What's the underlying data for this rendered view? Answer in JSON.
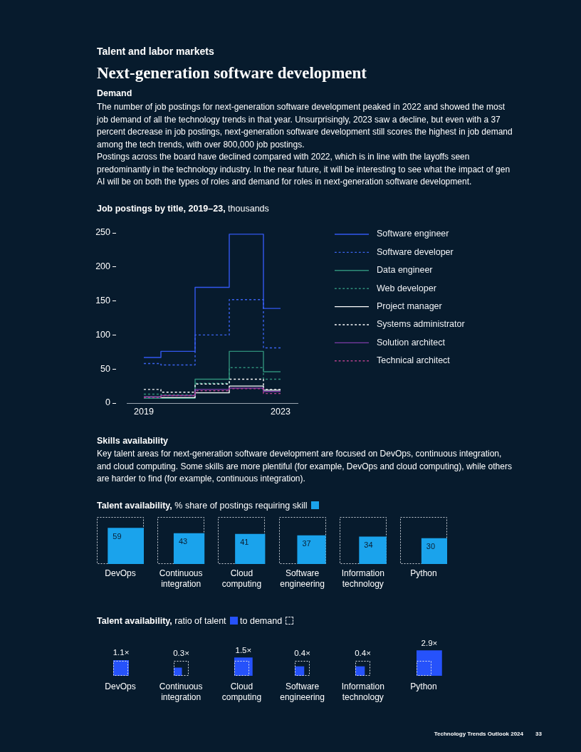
{
  "chart_data": [
    {
      "type": "step",
      "title": "Job postings by title, 2019–23, thousands",
      "x": [
        2019,
        2020,
        2021,
        2022,
        2023
      ],
      "xlim": [
        2018.5,
        2023.5
      ],
      "xticks": [
        2019,
        2023
      ],
      "ylim": [
        0,
        250
      ],
      "yticks": [
        0,
        50,
        100,
        150,
        200,
        250
      ],
      "grid": false,
      "legend": "right",
      "series": [
        {
          "name": "Software engineer",
          "color": "#3358f0",
          "values": [
            67,
            76,
            170,
            248,
            139
          ]
        },
        {
          "name": "Software developer",
          "color": "#3a63f0",
          "line_style": "dashed",
          "values": [
            58,
            56,
            100,
            152,
            81
          ]
        },
        {
          "name": "Data engineer",
          "color": "#2f8f7a",
          "values": [
            7,
            7,
            35,
            76,
            46
          ]
        },
        {
          "name": "Web developer",
          "color": "#2f8f7a",
          "line_style": "dashed",
          "values": [
            13,
            12,
            29,
            52,
            35
          ]
        },
        {
          "name": "Project manager",
          "color": "#ffffff",
          "values": [
            9,
            8,
            15,
            25,
            19
          ]
        },
        {
          "name": "Systems administrator",
          "color": "#ffffff",
          "line_style": "dashed",
          "values": [
            20,
            16,
            28,
            35,
            20
          ]
        },
        {
          "name": "Solution architect",
          "color": "#7d3ca8",
          "values": [
            9,
            11,
            20,
            22,
            17
          ]
        },
        {
          "name": "Technical architect",
          "color": "#b4418c",
          "line_style": "dashed",
          "values": [
            8,
            11,
            18,
            21,
            14
          ]
        }
      ],
      "annotations": [
        "Talent and labor markets",
        "Next-generation software development",
        "Demand",
        "The number of job postings for next-generation software development peaked in 2022 and showed the most job demand of all the technology trends in that year. Unsurprisingly, 2023 saw a decline, but even with a 37 percent decrease in job postings, next-generation software development still scores the highest in job demand among the tech trends, with over 800,000 job postings.",
        "Postings across the board have declined compared with 2022, which is in line with the layoffs seen predominantly in the technology industry. In the near future, it will be interesting to see what the impact of gen AI will be on both the types of roles and demand for roles in next-generation software development."
      ]
    },
    {
      "type": "other",
      "title": "Talent availability, % share of postings requiring skill",
      "categories": [
        "DevOps",
        "Continuous integration",
        "Cloud computing",
        "Software engineering",
        "Information technology",
        "Python"
      ],
      "values": [
        59,
        43,
        41,
        37,
        34,
        30
      ],
      "color": "#1aa3ec",
      "data_labels": true,
      "annotations": [
        "Skills availability",
        "Key talent areas for next-generation software development are focused on DevOps, continuous integration, and cloud computing. Some skills are more plentiful (for example, DevOps and cloud computing), while others are harder to find (for example, continuous integration)."
      ]
    },
    {
      "type": "other",
      "title": "Talent availability, ratio of talent to demand",
      "categories": [
        "DevOps",
        "Continuous integration",
        "Cloud computing",
        "Software engineering",
        "Information technology",
        "Python"
      ],
      "values": [
        1.1,
        0.3,
        1.5,
        0.4,
        0.4,
        2.9
      ],
      "value_labels": [
        "1.1×",
        "0.3×",
        "1.5×",
        "0.4×",
        "0.4×",
        "2.9×"
      ],
      "color": "#2652fb",
      "annotations": [
        "Technology Trends Outlook 2024",
        "33"
      ]
    }
  ]
}
